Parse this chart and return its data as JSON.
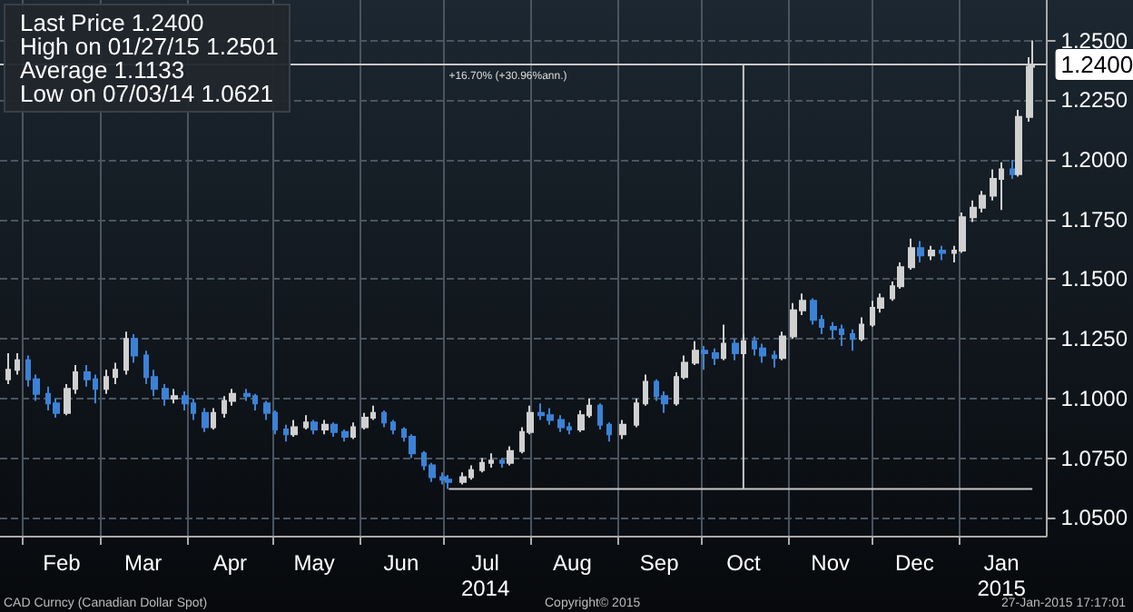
{
  "chart_data": {
    "type": "candlestick",
    "xlim": [
      "2014-01-24",
      "2015-02-01"
    ],
    "xticks": [
      {
        "value": "2014-02-01",
        "label": null
      },
      {
        "value": "2014-02-15",
        "label": "Feb"
      },
      {
        "value": "2014-03-01",
        "label": null
      },
      {
        "value": "2014-03-16",
        "label": "Mar"
      },
      {
        "value": "2014-04-01",
        "label": null
      },
      {
        "value": "2014-04-16",
        "label": "Apr"
      },
      {
        "value": "2014-05-01",
        "label": null
      },
      {
        "value": "2014-05-16",
        "label": "May"
      },
      {
        "value": "2014-06-01",
        "label": null
      },
      {
        "value": "2014-06-16",
        "label": "Jun"
      },
      {
        "value": "2014-07-01",
        "label": null
      },
      {
        "value": "2014-07-16",
        "label": "Jul\n2014"
      },
      {
        "value": "2014-08-01",
        "label": null
      },
      {
        "value": "2014-08-16",
        "label": "Aug"
      },
      {
        "value": "2014-09-01",
        "label": null
      },
      {
        "value": "2014-09-16",
        "label": "Sep"
      },
      {
        "value": "2014-10-01",
        "label": null
      },
      {
        "value": "2014-10-16",
        "label": "Oct"
      },
      {
        "value": "2014-11-01",
        "label": null
      },
      {
        "value": "2014-11-16",
        "label": "Nov"
      },
      {
        "value": "2014-12-01",
        "label": null
      },
      {
        "value": "2014-12-16",
        "label": "Dec"
      },
      {
        "value": "2015-01-01",
        "label": null
      },
      {
        "value": "2015-01-16",
        "label": "Jan\n2015"
      }
    ],
    "ylim": [
      1.0425,
      1.267
    ],
    "yticks": [
      {
        "value": 1.05,
        "label": "1.0500"
      },
      {
        "value": 1.075,
        "label": "1.0750"
      },
      {
        "value": 1.1,
        "label": "1.1000"
      },
      {
        "value": 1.125,
        "label": "1.1250"
      },
      {
        "value": 1.15,
        "label": "1.1500"
      },
      {
        "value": 1.175,
        "label": "1.1750"
      },
      {
        "value": 1.2,
        "label": "1.2000"
      },
      {
        "value": 1.225,
        "label": "1.2250"
      },
      {
        "value": 1.25,
        "label": "1.2500"
      }
    ],
    "grid": true,
    "ref_lines": [
      {
        "axis": "y",
        "value": 1.24,
        "label": "1.2400",
        "color": "#c8c8c8"
      }
    ],
    "annotations": [
      "Last Price 1.2400",
      "High on 01/27/15 1.2501",
      "Average 1.1133",
      "Low on 07/03/14 1.0621",
      {
        "text": "+16.70% (+30.96%ann.)",
        "x": "2014-07-03",
        "y": 1.24
      },
      "CAD Curncy (Canadian Dollar Spot)",
      "Copyright© 2015",
      "27-Jan-2015 17:17:01"
    ],
    "series": [
      {
        "colors": [
          "#d0d0d0",
          "#d0d0d0",
          "#3b82d6",
          "#3b82d6",
          "#3b82d6",
          "#3b82d6",
          "#d0d0d0",
          "#d0d0d0",
          "#3b82d6",
          "#3b82d6",
          "#d0d0d0",
          "#d0d0d0",
          "#d0d0d0",
          "#3b82d6",
          "#3b82d6",
          "#3b82d6",
          "#3b82d6",
          "#d0d0d0",
          "#3b82d6",
          "#3b82d6",
          "#3b82d6",
          "#d0d0d0",
          "#d0d0d0",
          "#d0d0d0",
          "#3b82d6",
          "#3b82d6",
          "#3b82d6",
          "#3b82d6",
          "#3b82d6",
          "#d0d0d0",
          "#d0d0d0",
          "#3b82d6",
          "#d0d0d0",
          "#3b82d6",
          "#3b82d6",
          "#d0d0d0",
          "#d0d0d0",
          "#d0d0d0",
          "#3b82d6",
          "#3b82d6",
          "#3b82d6",
          "#3b82d6",
          "#3b82d6",
          "#3b82d6",
          "#3b82d6",
          "#3b82d6",
          "#d0d0d0",
          "#d0d0d0",
          "#d0d0d0",
          "#d0d0d0",
          "#3b82d6",
          "#d0d0d0",
          "#d0d0d0",
          "#d0d0d0",
          "#3b82d6",
          "#3b82d6",
          "#3b82d6",
          "#3b82d6",
          "#d0d0d0",
          "#d0d0d0",
          "#3b82d6",
          "#3b82d6",
          "#d0d0d0",
          "#d0d0d0",
          "#d0d0d0",
          "#3b82d6",
          "#3b82d6",
          "#d0d0d0",
          "#d0d0d0",
          "#d0d0d0",
          "#3b82d6",
          "#3b82d6",
          "#d0d0d0",
          "#3b82d6",
          "#d0d0d0",
          "#3b82d6",
          "#3b82d6",
          "#3b82d6",
          "#d0d0d0",
          "#d0d0d0",
          "#d0d0d0",
          "#3b82d6",
          "#3b82d6",
          "#3b82d6",
          "#3b82d6",
          "#3b82d6",
          "#d0d0d0",
          "#d0d0d0",
          "#d0d0d0",
          "#d0d0d0",
          "#d0d0d0",
          "#d0d0d0",
          "#3b82d6",
          "#d0d0d0",
          "#3b82d6",
          "#d0d0d0",
          "#d0d0d0",
          "#d0d0d0",
          "#d0d0d0",
          "#d0d0d0",
          "#d0d0d0",
          "#3b82d6",
          "#d0d0d0",
          "#d0d0d0",
          "#d0d0d0"
        ],
        "x": [
          "2014-01-27",
          "2014-01-30",
          "2014-02-03",
          "2014-02-06",
          "2014-02-10",
          "2014-02-13",
          "2014-02-17",
          "2014-02-20",
          "2014-02-24",
          "2014-02-27",
          "2014-03-03",
          "2014-03-06",
          "2014-03-10",
          "2014-03-13",
          "2014-03-17",
          "2014-03-20",
          "2014-03-24",
          "2014-03-27",
          "2014-03-31",
          "2014-04-03",
          "2014-04-07",
          "2014-04-10",
          "2014-04-14",
          "2014-04-17",
          "2014-04-22",
          "2014-04-25",
          "2014-04-29",
          "2014-05-02",
          "2014-05-06",
          "2014-05-09",
          "2014-05-13",
          "2014-05-16",
          "2014-05-20",
          "2014-05-23",
          "2014-05-27",
          "2014-05-30",
          "2014-06-03",
          "2014-06-06",
          "2014-06-10",
          "2014-06-13",
          "2014-06-17",
          "2014-06-20",
          "2014-06-24",
          "2014-06-27",
          "2014-07-01",
          "2014-07-03",
          "2014-07-08",
          "2014-07-11",
          "2014-07-15",
          "2014-07-18",
          "2014-07-22",
          "2014-07-25",
          "2014-07-29",
          "2014-08-01",
          "2014-08-05",
          "2014-08-08",
          "2014-08-12",
          "2014-08-15",
          "2014-08-19",
          "2014-08-22",
          "2014-08-26",
          "2014-08-29",
          "2014-09-03",
          "2014-09-08",
          "2014-09-11",
          "2014-09-15",
          "2014-09-18",
          "2014-09-22",
          "2014-09-25",
          "2014-09-29",
          "2014-10-02",
          "2014-10-06",
          "2014-10-09",
          "2014-10-13",
          "2014-10-16",
          "2014-10-20",
          "2014-10-23",
          "2014-10-27",
          "2014-10-30",
          "2014-11-03",
          "2014-11-06",
          "2014-11-10",
          "2014-11-13",
          "2014-11-17",
          "2014-11-20",
          "2014-11-24",
          "2014-11-27",
          "2014-12-01",
          "2014-12-04",
          "2014-12-08",
          "2014-12-11",
          "2014-12-15",
          "2014-12-18",
          "2014-12-22",
          "2014-12-26",
          "2014-12-30",
          "2015-01-02",
          "2015-01-06",
          "2015-01-09",
          "2015-01-13",
          "2015-01-16",
          "2015-01-20",
          "2015-01-22",
          "2015-01-26",
          "2015-01-27"
        ],
        "ohlc": [
          [
            1.108,
            1.119,
            1.106,
            1.112
          ],
          [
            1.112,
            1.119,
            1.11,
            1.116
          ],
          [
            1.116,
            1.118,
            1.105,
            1.108
          ],
          [
            1.108,
            1.11,
            1.099,
            1.102
          ],
          [
            1.102,
            1.105,
            1.095,
            1.098
          ],
          [
            1.098,
            1.1,
            1.092,
            1.094
          ],
          [
            1.094,
            1.106,
            1.093,
            1.104
          ],
          [
            1.104,
            1.114,
            1.102,
            1.111
          ],
          [
            1.111,
            1.114,
            1.105,
            1.108
          ],
          [
            1.108,
            1.11,
            1.098,
            1.104
          ],
          [
            1.104,
            1.112,
            1.102,
            1.109
          ],
          [
            1.109,
            1.115,
            1.106,
            1.112
          ],
          [
            1.112,
            1.128,
            1.11,
            1.125
          ],
          [
            1.125,
            1.127,
            1.115,
            1.118
          ],
          [
            1.118,
            1.12,
            1.106,
            1.109
          ],
          [
            1.109,
            1.112,
            1.101,
            1.104
          ],
          [
            1.104,
            1.106,
            1.097,
            1.1
          ],
          [
            1.1,
            1.104,
            1.098,
            1.101
          ],
          [
            1.101,
            1.103,
            1.095,
            1.098
          ],
          [
            1.098,
            1.1,
            1.091,
            1.094
          ],
          [
            1.094,
            1.096,
            1.086,
            1.088
          ],
          [
            1.088,
            1.096,
            1.087,
            1.094
          ],
          [
            1.094,
            1.101,
            1.092,
            1.099
          ],
          [
            1.099,
            1.104,
            1.097,
            1.102
          ],
          [
            1.102,
            1.104,
            1.099,
            1.101
          ],
          [
            1.101,
            1.102,
            1.095,
            1.098
          ],
          [
            1.098,
            1.099,
            1.091,
            1.094
          ],
          [
            1.094,
            1.095,
            1.085,
            1.087
          ],
          [
            1.087,
            1.089,
            1.082,
            1.085
          ],
          [
            1.085,
            1.091,
            1.084,
            1.088
          ],
          [
            1.088,
            1.093,
            1.087,
            1.09
          ],
          [
            1.09,
            1.091,
            1.085,
            1.087
          ],
          [
            1.087,
            1.091,
            1.085,
            1.089
          ],
          [
            1.089,
            1.09,
            1.084,
            1.086
          ],
          [
            1.086,
            1.087,
            1.082,
            1.084
          ],
          [
            1.084,
            1.09,
            1.083,
            1.088
          ],
          [
            1.088,
            1.094,
            1.087,
            1.092
          ],
          [
            1.092,
            1.097,
            1.091,
            1.094
          ],
          [
            1.094,
            1.095,
            1.088,
            1.09
          ],
          [
            1.09,
            1.091,
            1.085,
            1.087
          ],
          [
            1.087,
            1.088,
            1.082,
            1.084
          ],
          [
            1.084,
            1.085,
            1.075,
            1.077
          ],
          [
            1.077,
            1.078,
            1.07,
            1.072
          ],
          [
            1.072,
            1.073,
            1.065,
            1.067
          ],
          [
            1.067,
            1.069,
            1.064,
            1.066
          ],
          [
            1.066,
            1.068,
            1.0621,
            1.065
          ],
          [
            1.065,
            1.069,
            1.064,
            1.067
          ],
          [
            1.067,
            1.072,
            1.066,
            1.07
          ],
          [
            1.07,
            1.075,
            1.069,
            1.073
          ],
          [
            1.073,
            1.077,
            1.071,
            1.074
          ],
          [
            1.074,
            1.075,
            1.071,
            1.073
          ],
          [
            1.073,
            1.08,
            1.072,
            1.078
          ],
          [
            1.078,
            1.088,
            1.077,
            1.086
          ],
          [
            1.086,
            1.097,
            1.085,
            1.094
          ],
          [
            1.094,
            1.098,
            1.091,
            1.093
          ],
          [
            1.093,
            1.096,
            1.089,
            1.091
          ],
          [
            1.091,
            1.093,
            1.086,
            1.088
          ],
          [
            1.088,
            1.09,
            1.085,
            1.087
          ],
          [
            1.087,
            1.095,
            1.086,
            1.093
          ],
          [
            1.093,
            1.1,
            1.092,
            1.097
          ],
          [
            1.097,
            1.098,
            1.087,
            1.089
          ],
          [
            1.089,
            1.09,
            1.082,
            1.085
          ],
          [
            1.085,
            1.091,
            1.083,
            1.089
          ],
          [
            1.089,
            1.1,
            1.088,
            1.098
          ],
          [
            1.098,
            1.11,
            1.097,
            1.107
          ],
          [
            1.107,
            1.108,
            1.099,
            1.101
          ],
          [
            1.101,
            1.103,
            1.094,
            1.098
          ],
          [
            1.098,
            1.111,
            1.097,
            1.109
          ],
          [
            1.109,
            1.118,
            1.108,
            1.115
          ],
          [
            1.115,
            1.124,
            1.114,
            1.12
          ],
          [
            1.12,
            1.122,
            1.112,
            1.119
          ],
          [
            1.119,
            1.121,
            1.114,
            1.117
          ],
          [
            1.117,
            1.131,
            1.116,
            1.123
          ],
          [
            1.123,
            1.125,
            1.116,
            1.119
          ],
          [
            1.119,
            1.127,
            1.117,
            1.124
          ],
          [
            1.124,
            1.126,
            1.118,
            1.121
          ],
          [
            1.121,
            1.123,
            1.115,
            1.118
          ],
          [
            1.118,
            1.12,
            1.113,
            1.117
          ],
          [
            1.117,
            1.128,
            1.116,
            1.126
          ],
          [
            1.126,
            1.14,
            1.125,
            1.137
          ],
          [
            1.137,
            1.144,
            1.135,
            1.141
          ],
          [
            1.141,
            1.142,
            1.131,
            1.133
          ],
          [
            1.133,
            1.135,
            1.127,
            1.13
          ],
          [
            1.13,
            1.132,
            1.125,
            1.129
          ],
          [
            1.129,
            1.131,
            1.122,
            1.127
          ],
          [
            1.127,
            1.129,
            1.12,
            1.125
          ],
          [
            1.125,
            1.134,
            1.124,
            1.131
          ],
          [
            1.131,
            1.141,
            1.13,
            1.138
          ],
          [
            1.138,
            1.144,
            1.136,
            1.142
          ],
          [
            1.142,
            1.149,
            1.141,
            1.147
          ],
          [
            1.147,
            1.157,
            1.146,
            1.155
          ],
          [
            1.155,
            1.167,
            1.154,
            1.163
          ],
          [
            1.163,
            1.166,
            1.157,
            1.16
          ],
          [
            1.16,
            1.164,
            1.158,
            1.162
          ],
          [
            1.162,
            1.164,
            1.158,
            1.161
          ],
          [
            1.161,
            1.164,
            1.157,
            1.162
          ],
          [
            1.162,
            1.178,
            1.161,
            1.176
          ],
          [
            1.176,
            1.183,
            1.174,
            1.18
          ],
          [
            1.18,
            1.187,
            1.178,
            1.185
          ],
          [
            1.185,
            1.196,
            1.183,
            1.192
          ],
          [
            1.192,
            1.199,
            1.179,
            1.196
          ],
          [
            1.196,
            1.2,
            1.192,
            1.194
          ],
          [
            1.194,
            1.221,
            1.193,
            1.218
          ],
          [
            1.218,
            1.243,
            1.216,
            1.239
          ],
          [
            1.239,
            1.2501,
            1.236,
            1.24
          ]
        ]
      },
      {
        "type": "line",
        "color": "#c8c8c8",
        "x": [
          "2014-07-03",
          "2015-01-27"
        ],
        "values": [
          1.0621,
          1.0621
        ]
      },
      {
        "type": "line",
        "color": "#c8c8c8",
        "x": [
          "2014-10-16",
          "2014-10-16"
        ],
        "values": [
          1.0621,
          1.24
        ]
      }
    ]
  }
}
